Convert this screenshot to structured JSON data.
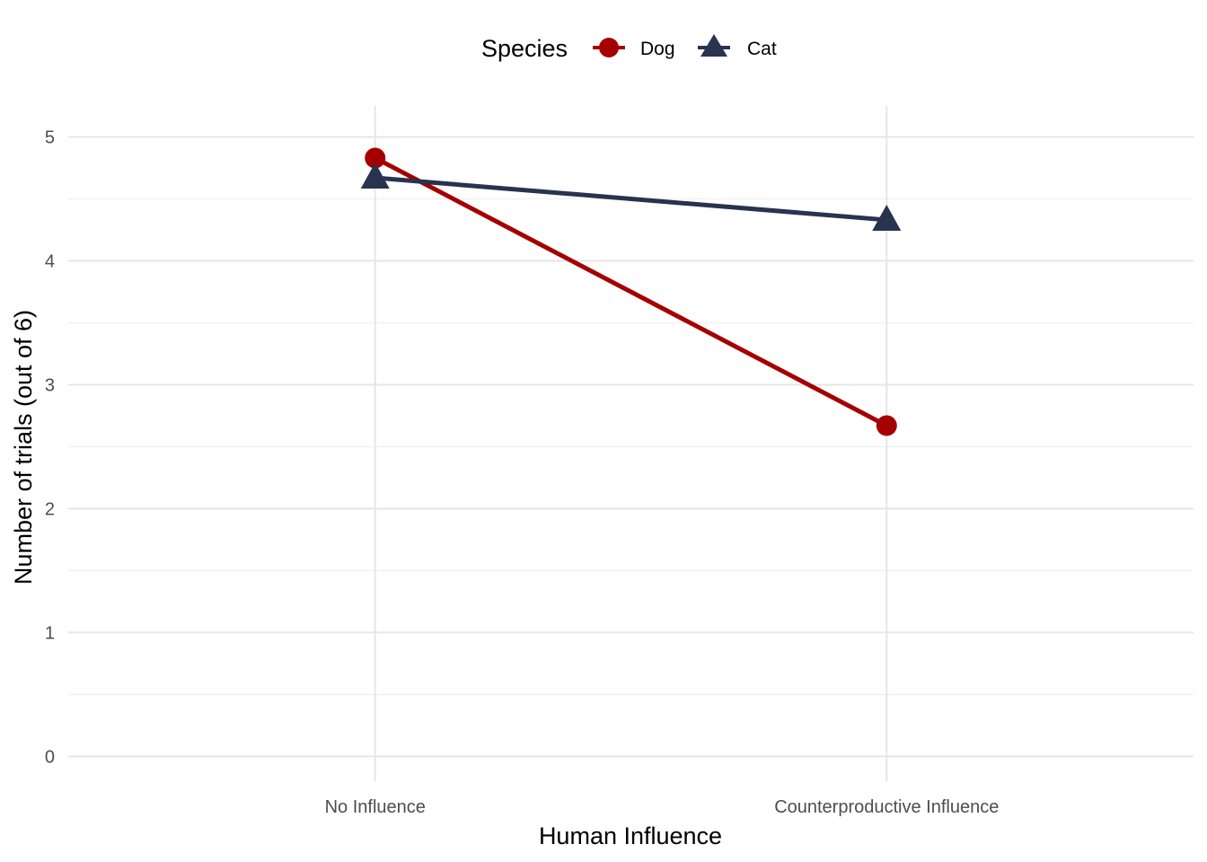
{
  "chart_data": {
    "type": "line",
    "title": "",
    "xlabel": "Human Influence",
    "ylabel": "Number of trials (out of 6)",
    "categories": [
      "No Influence",
      "Counterproductive Influence"
    ],
    "ylim": [
      -0.2,
      5.25
    ],
    "yticks": [
      "0",
      "1",
      "2",
      "3",
      "4",
      "5"
    ],
    "ytick_values": [
      0,
      1,
      2,
      3,
      4,
      5
    ],
    "grid": true,
    "legend": {
      "title": "Species",
      "position": "top"
    },
    "series": [
      {
        "name": "Dog",
        "values": [
          4.83,
          2.67
        ],
        "color": "#a50000",
        "marker": "circle"
      },
      {
        "name": "Cat",
        "values": [
          4.67,
          4.33
        ],
        "color": "#27334f",
        "marker": "triangle"
      }
    ]
  },
  "colors": {
    "grid_major": "#e6e6e6",
    "grid_minor": "#f0f0f0"
  }
}
